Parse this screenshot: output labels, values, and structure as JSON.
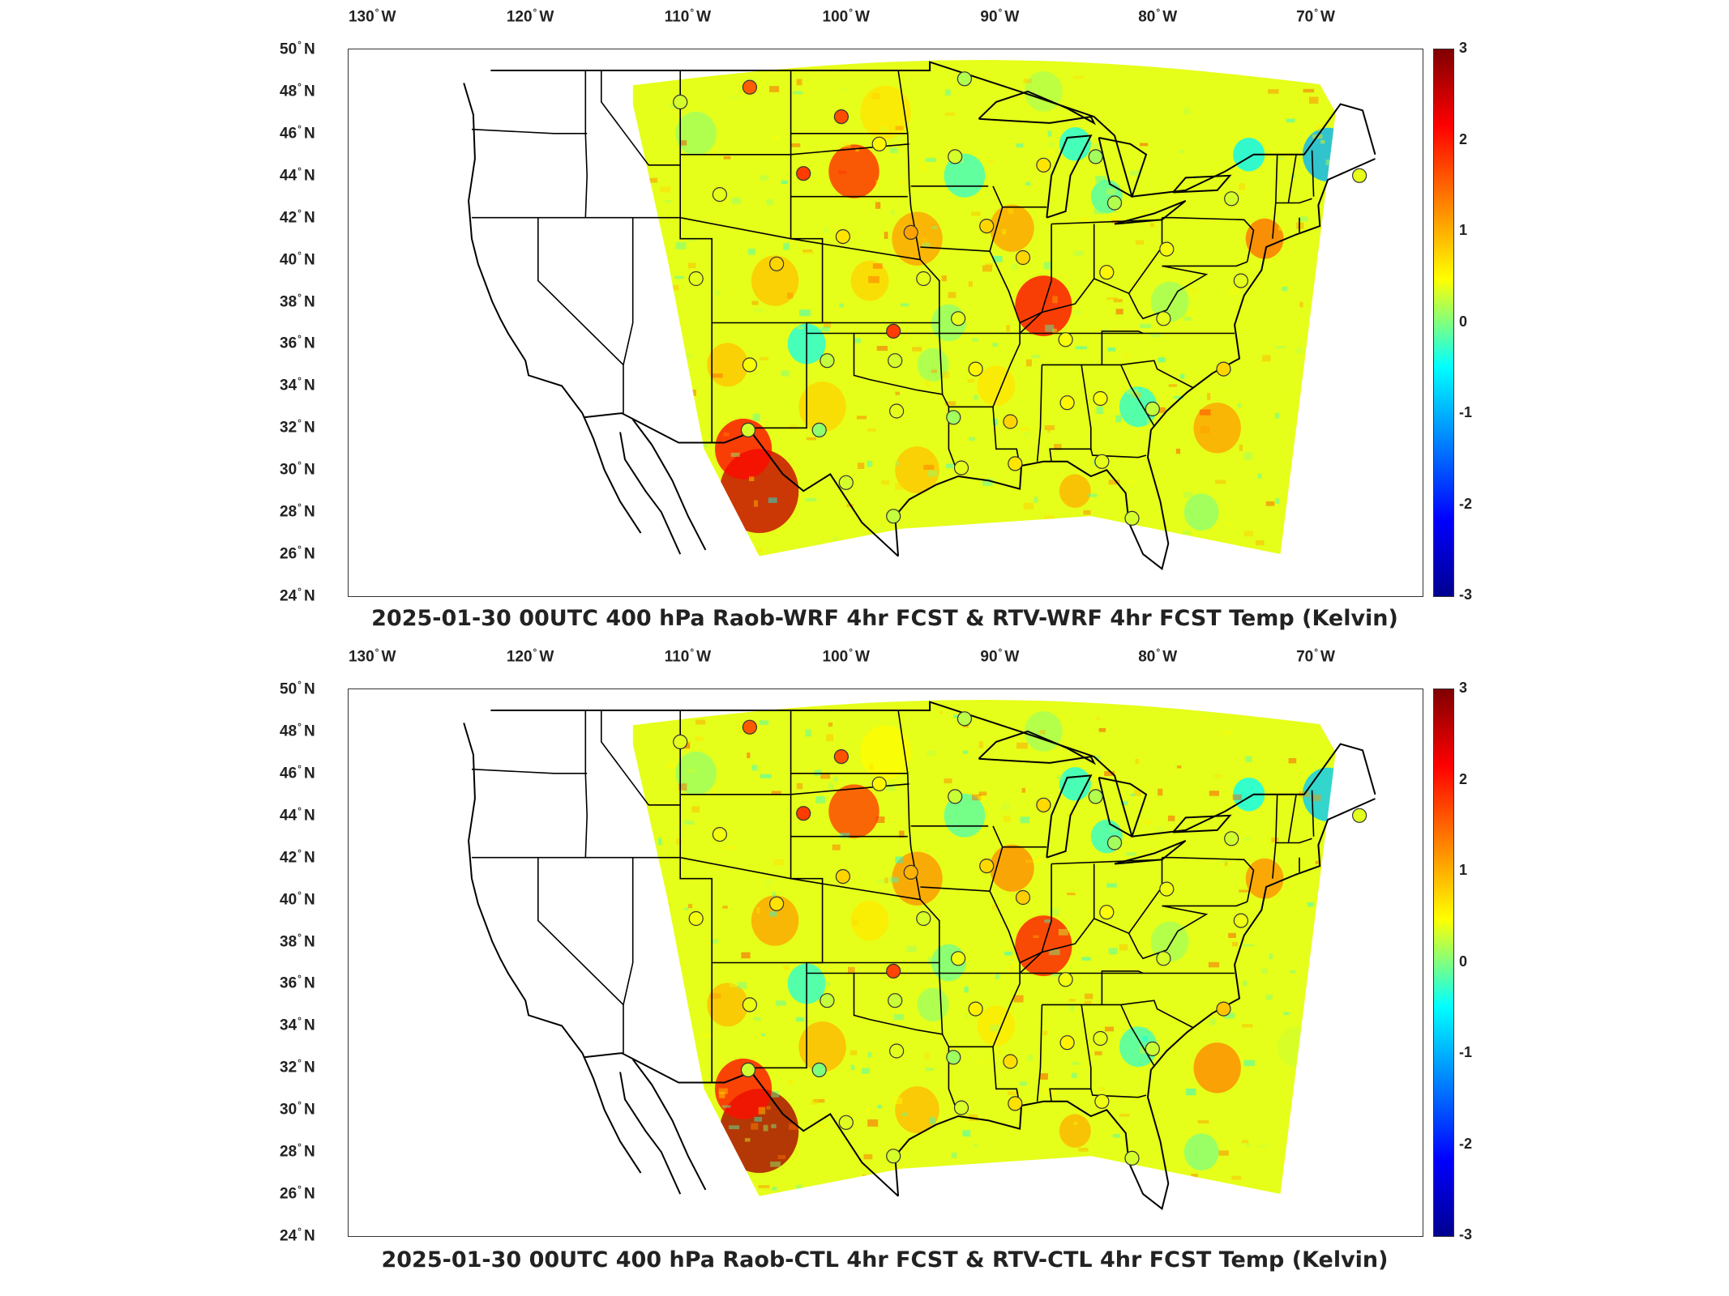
{
  "lon_ticks": [
    "130",
    "120",
    "110",
    "100",
    "90",
    "80",
    "70"
  ],
  "lon_suffix": "W",
  "lat_ticks": [
    "50",
    "48",
    "46",
    "44",
    "42",
    "40",
    "38",
    "36",
    "34",
    "32",
    "30",
    "28",
    "26",
    "24"
  ],
  "lat_suffix": "N",
  "degree_symbol": "°",
  "colorbar": {
    "ticks": [
      "3",
      "2",
      "1",
      "0",
      "-1",
      "-2",
      "-3"
    ],
    "range": [
      -3,
      3
    ],
    "colormap": "jet"
  },
  "panels": [
    {
      "title": "2025-01-30 00UTC 400 hPa Raob-WRF 4hr FCST & RTV-WRF 4hr FCST Temp (Kelvin)"
    },
    {
      "title": "2025-01-30 00UTC 400 hPa Raob-CTL 4hr FCST & RTV-CTL 4hr FCST Temp (Kelvin)"
    }
  ],
  "map_extent": {
    "lon": [
      -132,
      -64
    ],
    "lat": [
      24,
      50
    ]
  },
  "raob_stations": [
    {
      "lon": -111.0,
      "lat": 47.5,
      "value": 0.5
    },
    {
      "lon": -106.6,
      "lat": 48.2,
      "value": 1.7
    },
    {
      "lon": -100.8,
      "lat": 46.8,
      "value": 1.8
    },
    {
      "lon": -98.4,
      "lat": 45.5,
      "value": 0.8
    },
    {
      "lon": -103.2,
      "lat": 44.1,
      "value": 1.9
    },
    {
      "lon": -108.5,
      "lat": 43.1,
      "value": 0.6
    },
    {
      "lon": -93.6,
      "lat": 44.9,
      "value": 0.5
    },
    {
      "lon": -93.0,
      "lat": 48.6,
      "value": 0.3
    },
    {
      "lon": -88.0,
      "lat": 44.5,
      "value": 0.9
    },
    {
      "lon": -84.7,
      "lat": 44.9,
      "value": 0.2
    },
    {
      "lon": -83.5,
      "lat": 42.7,
      "value": 0.3
    },
    {
      "lon": -76.1,
      "lat": 42.9,
      "value": 0.5
    },
    {
      "lon": -68.0,
      "lat": 44.0,
      "value": 0.6
    },
    {
      "lon": -100.7,
      "lat": 41.1,
      "value": 0.9
    },
    {
      "lon": -96.4,
      "lat": 41.3,
      "value": 1.3
    },
    {
      "lon": -91.6,
      "lat": 41.6,
      "value": 1.0
    },
    {
      "lon": -89.3,
      "lat": 40.1,
      "value": 1.0
    },
    {
      "lon": -84.0,
      "lat": 39.4,
      "value": 0.8
    },
    {
      "lon": -80.2,
      "lat": 40.5,
      "value": 0.7
    },
    {
      "lon": -110.0,
      "lat": 39.1,
      "value": 0.6
    },
    {
      "lon": -104.9,
      "lat": 39.8,
      "value": 1.0
    },
    {
      "lon": -95.6,
      "lat": 39.1,
      "value": 0.6
    },
    {
      "lon": -93.4,
      "lat": 37.2,
      "value": 0.6
    },
    {
      "lon": -97.5,
      "lat": 36.6,
      "value": 1.9
    },
    {
      "lon": -97.4,
      "lat": 35.2,
      "value": 0.5
    },
    {
      "lon": -92.3,
      "lat": 34.8,
      "value": 0.8
    },
    {
      "lon": -86.6,
      "lat": 36.2,
      "value": 0.7
    },
    {
      "lon": -80.4,
      "lat": 37.2,
      "value": 0.6
    },
    {
      "lon": -75.5,
      "lat": 39.0,
      "value": 0.6
    },
    {
      "lon": -76.6,
      "lat": 34.8,
      "value": 1.0
    },
    {
      "lon": -106.6,
      "lat": 35.0,
      "value": 0.7
    },
    {
      "lon": -101.7,
      "lat": 35.2,
      "value": 0.4
    },
    {
      "lon": -97.3,
      "lat": 32.8,
      "value": 0.6
    },
    {
      "lon": -93.7,
      "lat": 32.5,
      "value": 0.2
    },
    {
      "lon": -90.1,
      "lat": 32.3,
      "value": 1.0
    },
    {
      "lon": -86.5,
      "lat": 33.2,
      "value": 0.8
    },
    {
      "lon": -84.4,
      "lat": 33.4,
      "value": 0.7
    },
    {
      "lon": -81.1,
      "lat": 32.9,
      "value": 0.4
    },
    {
      "lon": -106.7,
      "lat": 31.9,
      "value": 0.5
    },
    {
      "lon": -102.2,
      "lat": 31.9,
      "value": 0.1
    },
    {
      "lon": -100.5,
      "lat": 29.4,
      "value": 0.5
    },
    {
      "lon": -97.5,
      "lat": 27.8,
      "value": 0.4
    },
    {
      "lon": -93.2,
      "lat": 30.1,
      "value": 0.6
    },
    {
      "lon": -89.8,
      "lat": 30.3,
      "value": 0.9
    },
    {
      "lon": -84.3,
      "lat": 30.4,
      "value": 0.6
    },
    {
      "lon": -82.4,
      "lat": 27.7,
      "value": 0.5
    }
  ]
}
